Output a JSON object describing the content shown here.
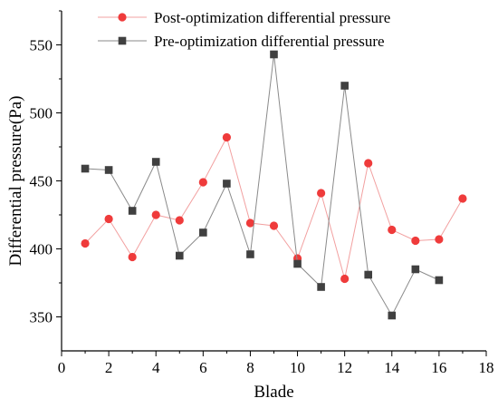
{
  "chart_data": {
    "type": "line",
    "title": "",
    "xlabel": "Blade",
    "ylabel": "Differential pressure(Pa)",
    "xlim": [
      0,
      18
    ],
    "ylim": [
      325,
      575
    ],
    "xticks": [
      0,
      2,
      4,
      6,
      8,
      10,
      12,
      14,
      16,
      18
    ],
    "yticks": [
      350,
      400,
      450,
      500,
      550
    ],
    "grid": false,
    "legend_position": "top-center",
    "series": [
      {
        "name": "Post-optimization differential pressure",
        "color": "#ef3b3b",
        "line_color": "#f2a0a0",
        "marker": "circle",
        "x": [
          1,
          2,
          3,
          4,
          5,
          6,
          7,
          8,
          9,
          10,
          11,
          12,
          13,
          14,
          15,
          16,
          17
        ],
        "y": [
          404,
          422,
          394,
          425,
          421,
          449,
          482,
          419,
          417,
          393,
          441,
          378,
          463,
          414,
          406,
          407,
          437
        ]
      },
      {
        "name": "Pre-optimization differential pressure",
        "color": "#404040",
        "line_color": "#8a8a8a",
        "marker": "square",
        "x": [
          1,
          2,
          3,
          4,
          5,
          6,
          7,
          8,
          9,
          10,
          11,
          12,
          13,
          14,
          15,
          16
        ],
        "y": [
          459,
          458,
          428,
          464,
          395,
          412,
          448,
          396,
          543,
          389,
          372,
          520,
          381,
          351,
          385,
          377
        ]
      }
    ]
  }
}
